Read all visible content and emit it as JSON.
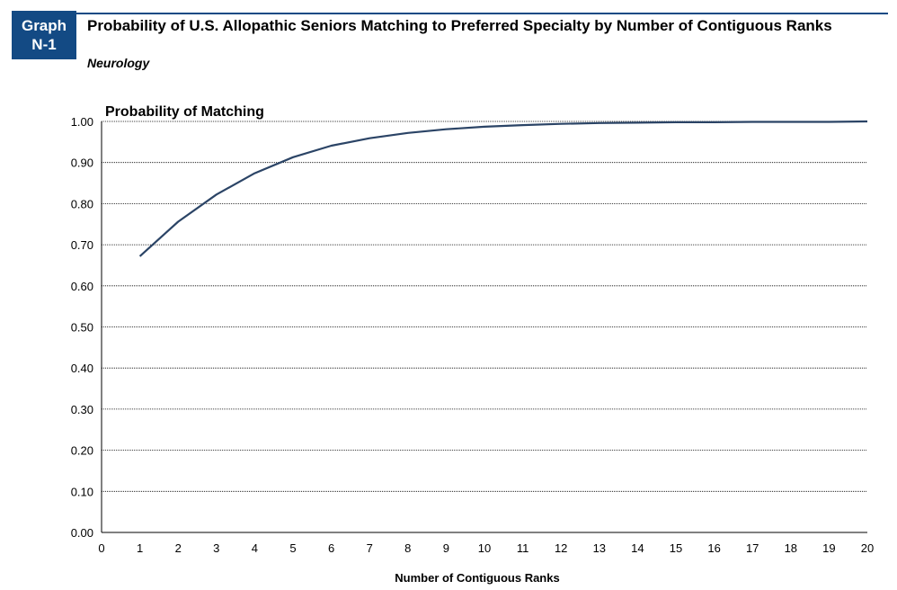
{
  "header": {
    "badge_line1": "Graph",
    "badge_line2": "N-1",
    "title": "Probability of U.S. Allopathic Seniors Matching to Preferred Specialty by Number of Contiguous Ranks",
    "subtitle": "Neurology"
  },
  "colors": {
    "badge": "#134a84",
    "line": "#2b4466",
    "grid": "#000000"
  },
  "chart_data": {
    "type": "line",
    "title": "Probability of Matching",
    "xlabel": "Number of Contiguous Ranks",
    "ylabel": "Probability of Matching",
    "xlim": [
      0,
      20
    ],
    "ylim": [
      0,
      1
    ],
    "xticks": [
      "0",
      "1",
      "2",
      "3",
      "4",
      "5",
      "6",
      "7",
      "8",
      "9",
      "10",
      "11",
      "12",
      "13",
      "14",
      "15",
      "16",
      "17",
      "18",
      "19",
      "20"
    ],
    "yticks": [
      "0.00",
      "0.10",
      "0.20",
      "0.30",
      "0.40",
      "0.50",
      "0.60",
      "0.70",
      "0.80",
      "0.90",
      "1.00"
    ],
    "grid": true,
    "series": [
      {
        "x": [
          1,
          2,
          3,
          4,
          5,
          6,
          7,
          8,
          9,
          10,
          11,
          12,
          13,
          14,
          15,
          16,
          17,
          18,
          19,
          20
        ],
        "values": [
          0.672,
          0.756,
          0.822,
          0.874,
          0.913,
          0.941,
          0.959,
          0.972,
          0.981,
          0.987,
          0.991,
          0.994,
          0.996,
          0.997,
          0.998,
          0.998,
          0.999,
          0.999,
          0.999,
          1.0
        ]
      }
    ]
  }
}
